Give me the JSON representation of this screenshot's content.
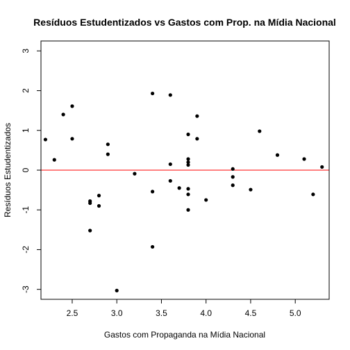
{
  "chart_data": {
    "type": "scatter",
    "title": "Resíduos Estudentizados vs Gastos com Prop. na Mídia Nacional",
    "xlabel": "Gastos com Propaganda na Mídia Nacional",
    "ylabel": "Resíduos Estudentizados",
    "xlim": [
      2.15,
      5.38
    ],
    "ylim": [
      -3.25,
      3.25
    ],
    "xticks": [
      "2.5",
      "3.0",
      "3.5",
      "4.0",
      "4.5",
      "5.0"
    ],
    "yticks": [
      "-3",
      "-2",
      "-1",
      "0",
      "1",
      "2",
      "3"
    ],
    "reference_line": {
      "y": 0,
      "color": "#ff0000"
    },
    "grid": false,
    "point_color": "#000000",
    "points": [
      {
        "x": 2.2,
        "y": 0.77
      },
      {
        "x": 2.3,
        "y": 0.26
      },
      {
        "x": 2.4,
        "y": 1.4
      },
      {
        "x": 2.5,
        "y": 1.61
      },
      {
        "x": 2.5,
        "y": 0.79
      },
      {
        "x": 2.7,
        "y": -0.78
      },
      {
        "x": 2.7,
        "y": -0.83
      },
      {
        "x": 2.7,
        "y": -1.52
      },
      {
        "x": 2.8,
        "y": -0.64
      },
      {
        "x": 2.8,
        "y": -0.9
      },
      {
        "x": 2.9,
        "y": 0.65
      },
      {
        "x": 2.9,
        "y": 0.4
      },
      {
        "x": 3.0,
        "y": -3.03
      },
      {
        "x": 3.2,
        "y": -0.09
      },
      {
        "x": 3.4,
        "y": 1.93
      },
      {
        "x": 3.4,
        "y": -0.54
      },
      {
        "x": 3.4,
        "y": -1.93
      },
      {
        "x": 3.6,
        "y": 1.89
      },
      {
        "x": 3.6,
        "y": 0.15
      },
      {
        "x": 3.6,
        "y": -0.27
      },
      {
        "x": 3.7,
        "y": -0.45
      },
      {
        "x": 3.8,
        "y": 0.9
      },
      {
        "x": 3.8,
        "y": 0.28
      },
      {
        "x": 3.8,
        "y": 0.2
      },
      {
        "x": 3.8,
        "y": 0.13
      },
      {
        "x": 3.8,
        "y": -0.47
      },
      {
        "x": 3.8,
        "y": -0.61
      },
      {
        "x": 3.8,
        "y": -1.0
      },
      {
        "x": 3.9,
        "y": 1.36
      },
      {
        "x": 3.9,
        "y": 0.79
      },
      {
        "x": 4.0,
        "y": -0.75
      },
      {
        "x": 4.3,
        "y": 0.03
      },
      {
        "x": 4.3,
        "y": -0.17
      },
      {
        "x": 4.3,
        "y": -0.38
      },
      {
        "x": 4.5,
        "y": -0.49
      },
      {
        "x": 4.6,
        "y": 0.98
      },
      {
        "x": 4.8,
        "y": 0.38
      },
      {
        "x": 5.1,
        "y": 0.28
      },
      {
        "x": 5.2,
        "y": -0.61
      },
      {
        "x": 5.3,
        "y": 0.08
      }
    ]
  }
}
